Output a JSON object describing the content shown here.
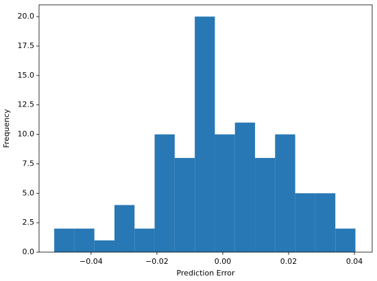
{
  "chart_data": {
    "type": "histogram",
    "x_label": "Prediction Error",
    "y_label": "Frequency",
    "bins": [
      -0.0512,
      -0.0451,
      -0.039,
      -0.0329,
      -0.0268,
      -0.0207,
      -0.0146,
      -0.0085,
      -0.0024,
      0.0037,
      0.0098,
      0.0159,
      0.022,
      0.0281,
      0.0342,
      0.0403
    ],
    "values": [
      2,
      2,
      1,
      4,
      2,
      10,
      8,
      20,
      10,
      11,
      8,
      10,
      5,
      5,
      2
    ],
    "color": "#2878b5",
    "xlim": [
      -0.0558,
      0.0454
    ],
    "xticks": [
      {
        "value": -0.04,
        "label": "−0.04"
      },
      {
        "value": -0.02,
        "label": "−0.02"
      },
      {
        "value": 0,
        "label": "0.00"
      },
      0.02,
      0.04
    ],
    "ylim": [
      0,
      21
    ],
    "yticks": [
      {
        "value": 0,
        "label": "0.0"
      },
      2.5,
      {
        "value": 5,
        "label": "5.0"
      },
      7.5,
      {
        "value": 10,
        "label": "10.0"
      },
      12.5,
      {
        "value": 15,
        "label": "15.0"
      },
      17.5,
      {
        "value": 20,
        "label": "20.0"
      }
    ]
  }
}
